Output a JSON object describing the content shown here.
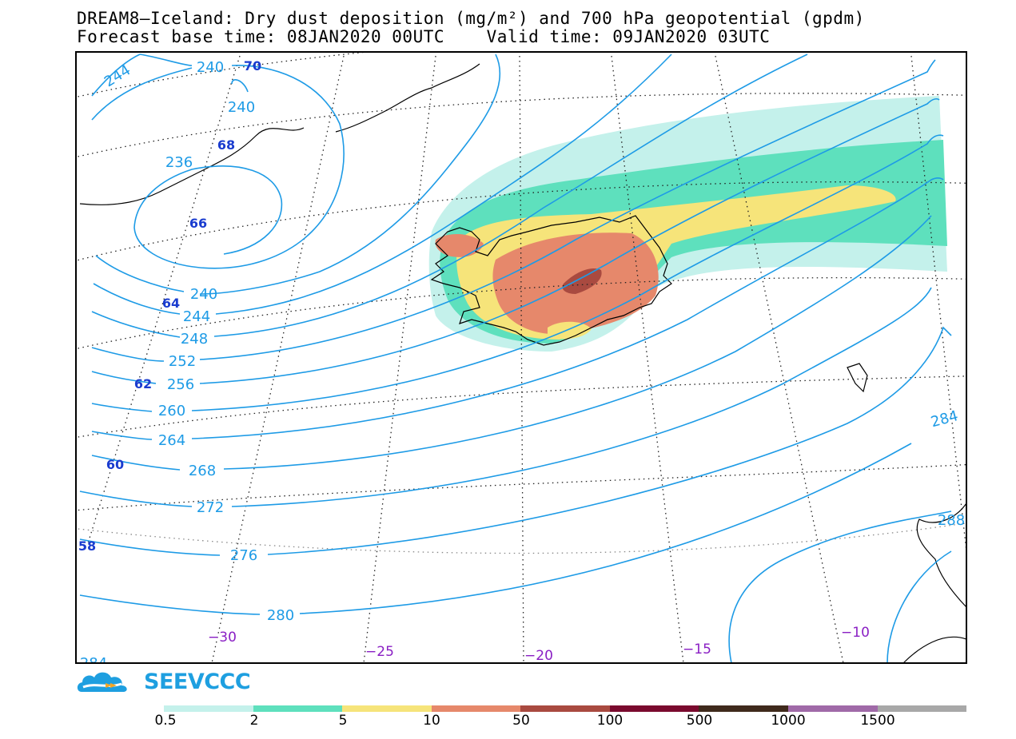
{
  "header": {
    "title_line1": "DREAM8—Iceland: Dry dust deposition (mg/m²) and 700 hPa geopotential (gpdm)",
    "title_line2": "Forecast base time: 08JAN2020 00UTC    Valid time: 09JAN2020 03UTC"
  },
  "logo": {
    "text": "SEEVCCC",
    "icon": "cloud-logo-icon"
  },
  "map": {
    "contour_color": "#1e9be6",
    "contour_labels": [
      {
        "text": "244"
      },
      {
        "text": "240"
      },
      {
        "text": "240"
      },
      {
        "text": "236"
      },
      {
        "text": "240"
      },
      {
        "text": "244"
      },
      {
        "text": "248"
      },
      {
        "text": "252"
      },
      {
        "text": "256"
      },
      {
        "text": "260"
      },
      {
        "text": "264"
      },
      {
        "text": "268"
      },
      {
        "text": "272"
      },
      {
        "text": "276"
      },
      {
        "text": "280"
      },
      {
        "text": "284"
      },
      {
        "text": "284"
      },
      {
        "text": "288"
      }
    ],
    "lat_labels": [
      "70",
      "68",
      "66",
      "64",
      "62",
      "60",
      "58"
    ],
    "lon_labels": [
      "−30",
      "−25",
      "−20",
      "−15",
      "−10"
    ],
    "lat_label_color": "#1a3ccf",
    "lon_label_color": "#8a1fc4"
  },
  "legend": {
    "colors": [
      "#c4f1eb",
      "#5ee0bd",
      "#f6e47a",
      "#e6886b",
      "#a94a40",
      "#7a0a2e",
      "#3f2a1c",
      "#a06aa8",
      "#a8a8a8"
    ],
    "labels": [
      "0.5",
      "2",
      "5",
      "10",
      "50",
      "100",
      "500",
      "1000",
      "1500"
    ]
  }
}
